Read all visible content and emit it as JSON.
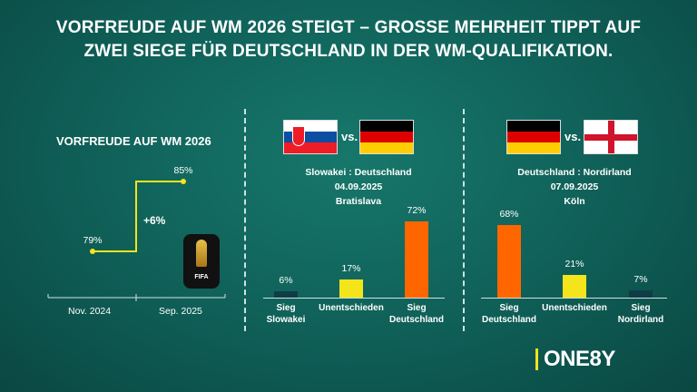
{
  "title_line1": "VORFREUDE AUF WM 2026 STEIGT – GROSSE MEHRHEIT TIPPT AUF",
  "title_line2": "ZWEI SIEGE FÜR DEUTSCHLAND IN DER WM-QUALIFIKATION.",
  "vorfreude": {
    "heading": "VORFREUDE AUF WM 2026",
    "points": [
      {
        "label": "Nov. 2024",
        "value": "79%"
      },
      {
        "label": "Sep. 2025",
        "value": "85%"
      }
    ],
    "change": "+6%",
    "logo_text": "FIFA"
  },
  "match1": {
    "vs": "vs.",
    "teams": "Slowakei : Deutschland",
    "date": "04.09.2025",
    "venue": "Bratislava",
    "bars": [
      {
        "label1": "Sieg",
        "label2": "Slowakei",
        "value": "6%",
        "pct": 6,
        "color": "#0e3d48"
      },
      {
        "label1": "Unentschieden",
        "label2": "",
        "value": "17%",
        "pct": 17,
        "color": "#f3e41c"
      },
      {
        "label1": "Sieg",
        "label2": "Deutschland",
        "value": "72%",
        "pct": 72,
        "color": "#ff6600"
      }
    ]
  },
  "match2": {
    "vs": "vs.",
    "teams": "Deutschland : Nordirland",
    "date": "07.09.2025",
    "venue": "Köln",
    "bars": [
      {
        "label1": "Sieg",
        "label2": "Deutschland",
        "value": "68%",
        "pct": 68,
        "color": "#ff6600"
      },
      {
        "label1": "Unentschieden",
        "label2": "",
        "value": "21%",
        "pct": 21,
        "color": "#f3e41c"
      },
      {
        "label1": "Sieg",
        "label2": "Nordirland",
        "value": "7%",
        "pct": 7,
        "color": "#0e3d48"
      }
    ]
  },
  "brand": "ONE8Y",
  "accent": "#f3e41c"
}
